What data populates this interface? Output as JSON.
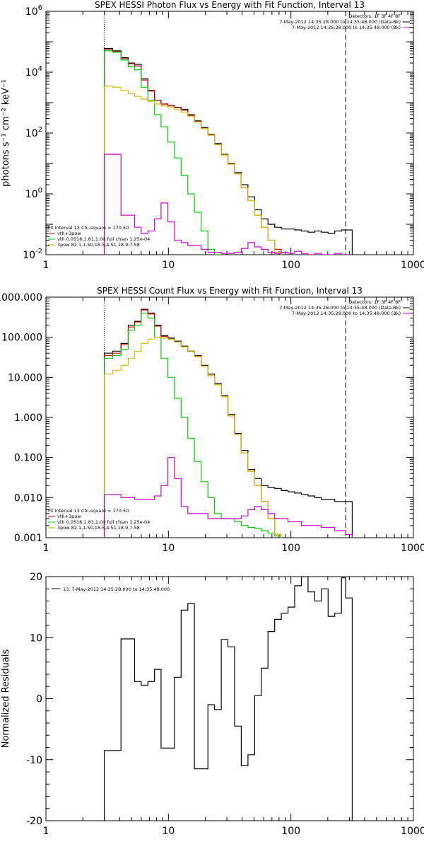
{
  "chart_data": [
    {
      "type": "line",
      "title": "SPEX HESSI Photon Flux vs Energy with Fit Function, Interval 13",
      "ylabel": "photons s⁻¹ cm⁻² keV⁻¹",
      "xlabel": "",
      "xscale": "log",
      "yscale": "log",
      "xlim": [
        1,
        1000
      ],
      "ylim": [
        0.01,
        1000000
      ],
      "x_ticks": [
        "1",
        "10",
        "100",
        "1000"
      ],
      "y_ticks": [
        {
          "value": 1000000,
          "base": "10",
          "exp": "6"
        },
        {
          "value": 10000,
          "base": "10",
          "exp": "4"
        },
        {
          "value": 100,
          "base": "10",
          "exp": "2"
        },
        {
          "value": 1,
          "base": "10",
          "exp": "0"
        },
        {
          "value": 0.01,
          "base": "10",
          "exp": "-2"
        }
      ],
      "vlines": [
        {
          "x": 3,
          "style": "dotted"
        },
        {
          "x": 280,
          "style": "dashed"
        }
      ],
      "legend_top": [
        {
          "text": "Detectors: 1F 3F 4F 8F",
          "color": "#000000"
        },
        {
          "text": "7-May-2012 14:35:28.000 to 14:35:48.000 (Data-Bk)",
          "color": "#000000"
        },
        {
          "text": "7-May-2012 14:35:28.000 to 14:35:48.000 (Bk)",
          "color": "#cc00cc"
        }
      ],
      "legend_bottom": [
        {
          "text": "Fit Interval 13   Chi-square = 170.50",
          "color": "#000000"
        },
        {
          "text": "vth+3pow",
          "color": "#cc0000"
        },
        {
          "text": "vth 0.0516,1.81,1.00  full chian 1.25e-04",
          "color": "#00cc00"
        },
        {
          "text": "3pow 82.1,1.50,18.5,4.51,18.9,7.58",
          "color": "#ccaa00"
        }
      ],
      "series": [
        {
          "color": "#000000",
          "x": [
            3,
            3.5,
            4.1,
            4.7,
            5.3,
            6,
            6.8,
            7.7,
            8.7,
            9.9,
            11.2,
            12.7,
            14.4,
            16.3,
            18.5,
            21,
            23.8,
            27,
            30.6,
            34.7,
            39.3,
            44.6,
            50.6,
            57.3,
            65,
            73.7,
            83.5,
            94.7,
            107.4,
            121.7,
            138,
            156.5,
            177.4,
            201.2,
            228,
            258.6,
            280
          ],
          "values": [
            60000,
            50000,
            30000,
            20000,
            18000,
            6000,
            2500,
            1200,
            900,
            800,
            700,
            600,
            400,
            250,
            150,
            90,
            45,
            20,
            10,
            5,
            2,
            0.8,
            0.3,
            0.15,
            0.1,
            0.08,
            0.07,
            0.07,
            0.065,
            0.06,
            0.055,
            0.06,
            0.055,
            0.05,
            0.06,
            0.065,
            0.065
          ]
        },
        {
          "color": "#cc0000",
          "x": [
            3,
            3.5,
            4.1,
            4.7,
            5.3,
            6,
            6.8,
            7.7,
            8.7,
            9.9,
            11.2,
            12.7,
            14.4,
            16.3,
            18.5,
            21,
            23.8,
            27,
            30.6,
            34.7,
            39.3,
            44.6,
            50.6,
            57.3,
            65,
            73.7
          ],
          "values": [
            55000,
            48000,
            28000,
            19000,
            16000,
            5500,
            2400,
            1200,
            900,
            780,
            680,
            560,
            380,
            240,
            140,
            85,
            42,
            19,
            9.5,
            4.5,
            1.6,
            0.6,
            0.2,
            0.08,
            0.03,
            0.015
          ]
        },
        {
          "color": "#00cc00",
          "x": [
            3,
            3.5,
            4.1,
            4.7,
            5.3,
            6,
            6.8,
            7.7,
            8.7,
            9.9,
            11.2,
            12.7,
            14.4,
            16.3,
            18.5,
            21,
            23.8
          ],
          "values": [
            50000,
            45000,
            25000,
            15000,
            12000,
            3200,
            1200,
            400,
            160,
            50,
            15,
            4,
            1,
            0.25,
            0.06,
            0.015,
            0.01
          ]
        },
        {
          "color": "#ddbb00",
          "x": [
            3,
            3.5,
            4.1,
            4.7,
            5.3,
            6,
            6.8,
            7.7,
            8.7,
            9.9,
            11.2,
            12.7,
            14.4,
            16.3,
            18.5,
            21,
            23.8,
            27,
            30.6,
            34.7,
            39.3,
            44.6,
            50.6,
            57.3,
            65,
            73.7
          ],
          "values": [
            3500,
            3200,
            2500,
            2000,
            1600,
            1300,
            1100,
            900,
            780,
            680,
            580,
            480,
            360,
            230,
            140,
            85,
            42,
            19,
            9.5,
            4.5,
            1.6,
            0.6,
            0.2,
            0.08,
            0.03,
            0.012
          ]
        },
        {
          "color": "#cc00cc",
          "x": [
            3,
            3.5,
            4.1,
            4.7,
            5.3,
            6,
            6.8,
            7.7,
            8.7,
            9.9,
            11.2,
            12.7,
            14.4,
            16.3,
            18.5,
            21,
            23.8,
            27,
            30.6,
            34.7,
            39.3,
            44.6,
            50.6,
            57.3,
            65,
            73.7,
            83.5,
            94.7,
            107.4,
            121.7,
            138,
            156.5,
            177.4,
            201.2,
            228,
            258.6,
            280
          ],
          "values": [
            20,
            20,
            0.2,
            0.2,
            0.08,
            0.05,
            0.06,
            0.15,
            0.5,
            0.12,
            0.03,
            0.025,
            0.02,
            0.02,
            0.015,
            0.012,
            0.012,
            0.011,
            0.011,
            0.012,
            0.016,
            0.025,
            0.018,
            0.015,
            0.012,
            0.011,
            0.012,
            0.011,
            0.013,
            0.011,
            0.01,
            0.011,
            0.01,
            0.01,
            0.011,
            0.01,
            0.01
          ]
        }
      ]
    },
    {
      "type": "line",
      "title": "SPEX HESSI Count Flux vs Energy with Fit Function, Interval 13",
      "ylabel": "",
      "xlabel": "",
      "xscale": "log",
      "yscale": "log",
      "xlim": [
        1,
        1000
      ],
      "ylim": [
        0.001,
        1000
      ],
      "x_ticks": [
        "1",
        "10",
        "100",
        "1000"
      ],
      "y_ticks": [
        {
          "value": 1000,
          "label": "1000.000"
        },
        {
          "value": 100,
          "label": "100.000"
        },
        {
          "value": 10,
          "label": "10.000"
        },
        {
          "value": 1,
          "label": "1.000"
        },
        {
          "value": 0.1,
          "label": "0.100"
        },
        {
          "value": 0.01,
          "label": "0.010"
        },
        {
          "value": 0.001,
          "label": "0.001"
        }
      ],
      "vlines": [
        {
          "x": 3,
          "style": "dotted"
        },
        {
          "x": 280,
          "style": "dashed"
        }
      ],
      "legend_top": [
        {
          "text": "Detectors: 1F 3F 4F 8F",
          "color": "#000000"
        },
        {
          "text": "7-May-2012 14:35:28.000 to 14:35:48.000 (Data-Bk)",
          "color": "#000000"
        },
        {
          "text": "7-May-2012 14:35:28.000 to 14:35:48.000 (Bk)",
          "color": "#cc00cc"
        }
      ],
      "legend_bottom": [
        {
          "text": "Fit Interval 13   Chi-square = 170.50",
          "color": "#000000"
        },
        {
          "text": "vth+3pow",
          "color": "#cc0000"
        },
        {
          "text": "vth 0.0516,1.81,1.00  full chian 1.25e-04",
          "color": "#00cc00"
        },
        {
          "text": "3pow 82.1,1.50,18.5,4.51,18.9,7.58",
          "color": "#ccaa00"
        }
      ],
      "series": [
        {
          "color": "#000000",
          "x": [
            3,
            3.5,
            4.1,
            4.7,
            5.3,
            6,
            6.8,
            7.7,
            8.7,
            9.9,
            11.2,
            12.7,
            14.4,
            16.3,
            18.5,
            21,
            23.8,
            27,
            30.6,
            34.7,
            39.3,
            44.6,
            50.6,
            57.3,
            65,
            73.7,
            83.5,
            94.7,
            107.4,
            121.7,
            138,
            156.5,
            177.4,
            201.2,
            228,
            258.6,
            280
          ],
          "values": [
            40,
            45,
            70,
            200,
            250,
            500,
            400,
            200,
            110,
            95,
            80,
            60,
            45,
            35,
            20,
            12,
            7,
            3.5,
            1.2,
            0.4,
            0.15,
            0.05,
            0.03,
            0.02,
            0.018,
            0.017,
            0.015,
            0.014,
            0.013,
            0.012,
            0.011,
            0.01,
            0.009,
            0.009,
            0.008,
            0.008,
            0.008
          ]
        },
        {
          "color": "#cc0000",
          "x": [
            3,
            3.5,
            4.1,
            4.7,
            5.3,
            6,
            6.8,
            7.7,
            8.7,
            9.9,
            11.2,
            12.7,
            14.4,
            16.3,
            18.5,
            21,
            23.8,
            27,
            30.6,
            34.7,
            39.3,
            44.6,
            50.6,
            57.3,
            65,
            73.7
          ],
          "values": [
            35,
            40,
            65,
            180,
            240,
            480,
            380,
            190,
            105,
            90,
            76,
            58,
            44,
            34,
            19,
            11,
            6.5,
            3.3,
            1.1,
            0.38,
            0.13,
            0.045,
            0.02,
            0.008,
            0.003,
            0.0012
          ]
        },
        {
          "color": "#00cc00",
          "x": [
            3,
            3.5,
            4.1,
            4.7,
            5.3,
            6,
            6.8,
            7.7,
            8.7,
            9.9,
            11.2,
            12.7,
            14.4,
            16.3,
            18.5,
            21,
            23.8,
            27,
            30.6,
            34.7,
            39.3,
            44.6,
            50.6,
            57.3,
            65,
            73.7
          ],
          "values": [
            30,
            35,
            50,
            150,
            200,
            400,
            300,
            100,
            30,
            10,
            3,
            1,
            0.3,
            0.08,
            0.025,
            0.01,
            0.004,
            0.003,
            0.003,
            0.0025,
            0.002,
            0.0018,
            0.0017,
            0.0015,
            0.0013,
            0.0011
          ]
        },
        {
          "color": "#ddbb00",
          "x": [
            3,
            3.5,
            4.1,
            4.7,
            5.3,
            6,
            6.8,
            7.7,
            8.7,
            9.9,
            11.2,
            12.7,
            14.4,
            16.3,
            18.5,
            21,
            23.8,
            27,
            30.6,
            34.7,
            39.3,
            44.6,
            50.6,
            57.3,
            65,
            73.7
          ],
          "values": [
            12,
            15,
            20,
            30,
            45,
            70,
            90,
            100,
            95,
            90,
            76,
            58,
            44,
            33,
            19,
            11,
            6.5,
            3.3,
            1.1,
            0.38,
            0.13,
            0.045,
            0.02,
            0.008,
            0.003,
            0.0012
          ]
        },
        {
          "color": "#cc00cc",
          "x": [
            3,
            3.5,
            4.1,
            4.7,
            5.3,
            6,
            6.8,
            7.7,
            8.7,
            9.9,
            11.2,
            12.7,
            14.4,
            16.3,
            18.5,
            21,
            23.8,
            27,
            30.6,
            34.7,
            39.3,
            44.6,
            50.6,
            57.3,
            65,
            73.7,
            83.5,
            94.7,
            107.4,
            121.7,
            138,
            156.5,
            177.4,
            201.2,
            228,
            258.6,
            280
          ],
          "values": [
            0.012,
            0.012,
            0.01,
            0.01,
            0.009,
            0.009,
            0.009,
            0.011,
            0.02,
            0.1,
            0.03,
            0.006,
            0.004,
            0.004,
            0.004,
            0.003,
            0.003,
            0.003,
            0.003,
            0.003,
            0.0035,
            0.005,
            0.006,
            0.005,
            0.004,
            0.003,
            0.003,
            0.0025,
            0.0025,
            0.002,
            0.002,
            0.002,
            0.0018,
            0.0018,
            0.0015,
            0.0015,
            0.0012
          ]
        }
      ]
    },
    {
      "type": "line",
      "title": "",
      "ylabel": "Normalized Residuals",
      "xlabel": "",
      "xscale": "log",
      "yscale": "linear",
      "xlim": [
        1,
        1000
      ],
      "ylim": [
        -20,
        20
      ],
      "x_ticks": [
        "1",
        "10",
        "100",
        "1000"
      ],
      "y_ticks": [
        {
          "value": 20,
          "label": "20"
        },
        {
          "value": 10,
          "label": "10"
        },
        {
          "value": 0,
          "label": "0"
        },
        {
          "value": -10,
          "label": "-10"
        },
        {
          "value": -20,
          "label": "-20"
        }
      ],
      "vlines": [],
      "legend_top": [
        {
          "text": "13.  7-May-2012 14:35:28.000 to 14:35:48.000",
          "color": "#000000"
        }
      ],
      "legend_bottom": [],
      "series": [
        {
          "color": "#000000",
          "x": [
            3,
            3.5,
            4.1,
            4.7,
            5.3,
            6,
            6.8,
            7.7,
            8.7,
            9.9,
            11.2,
            12.7,
            14.4,
            16.3,
            18.5,
            21,
            23.8,
            27,
            30.6,
            34.7,
            39.3,
            44.6,
            50.6,
            57.3,
            65,
            73.7,
            83.5,
            94.7,
            107.4,
            121.7,
            138,
            156.5,
            177.4,
            201.2,
            228,
            258.6,
            280
          ],
          "values": [
            -8.5,
            -8.5,
            9.8,
            9.8,
            2.8,
            2.2,
            2.8,
            4.8,
            -8.1,
            -8.1,
            3.5,
            14.5,
            15.6,
            -11.5,
            -11.5,
            -1,
            -1.8,
            9.7,
            8.5,
            -4.5,
            -11,
            -9.2,
            0.5,
            5,
            11,
            13,
            14,
            15,
            18.5,
            20,
            17.5,
            16,
            18,
            13.5,
            14,
            19.8,
            16.5
          ]
        }
      ]
    }
  ]
}
